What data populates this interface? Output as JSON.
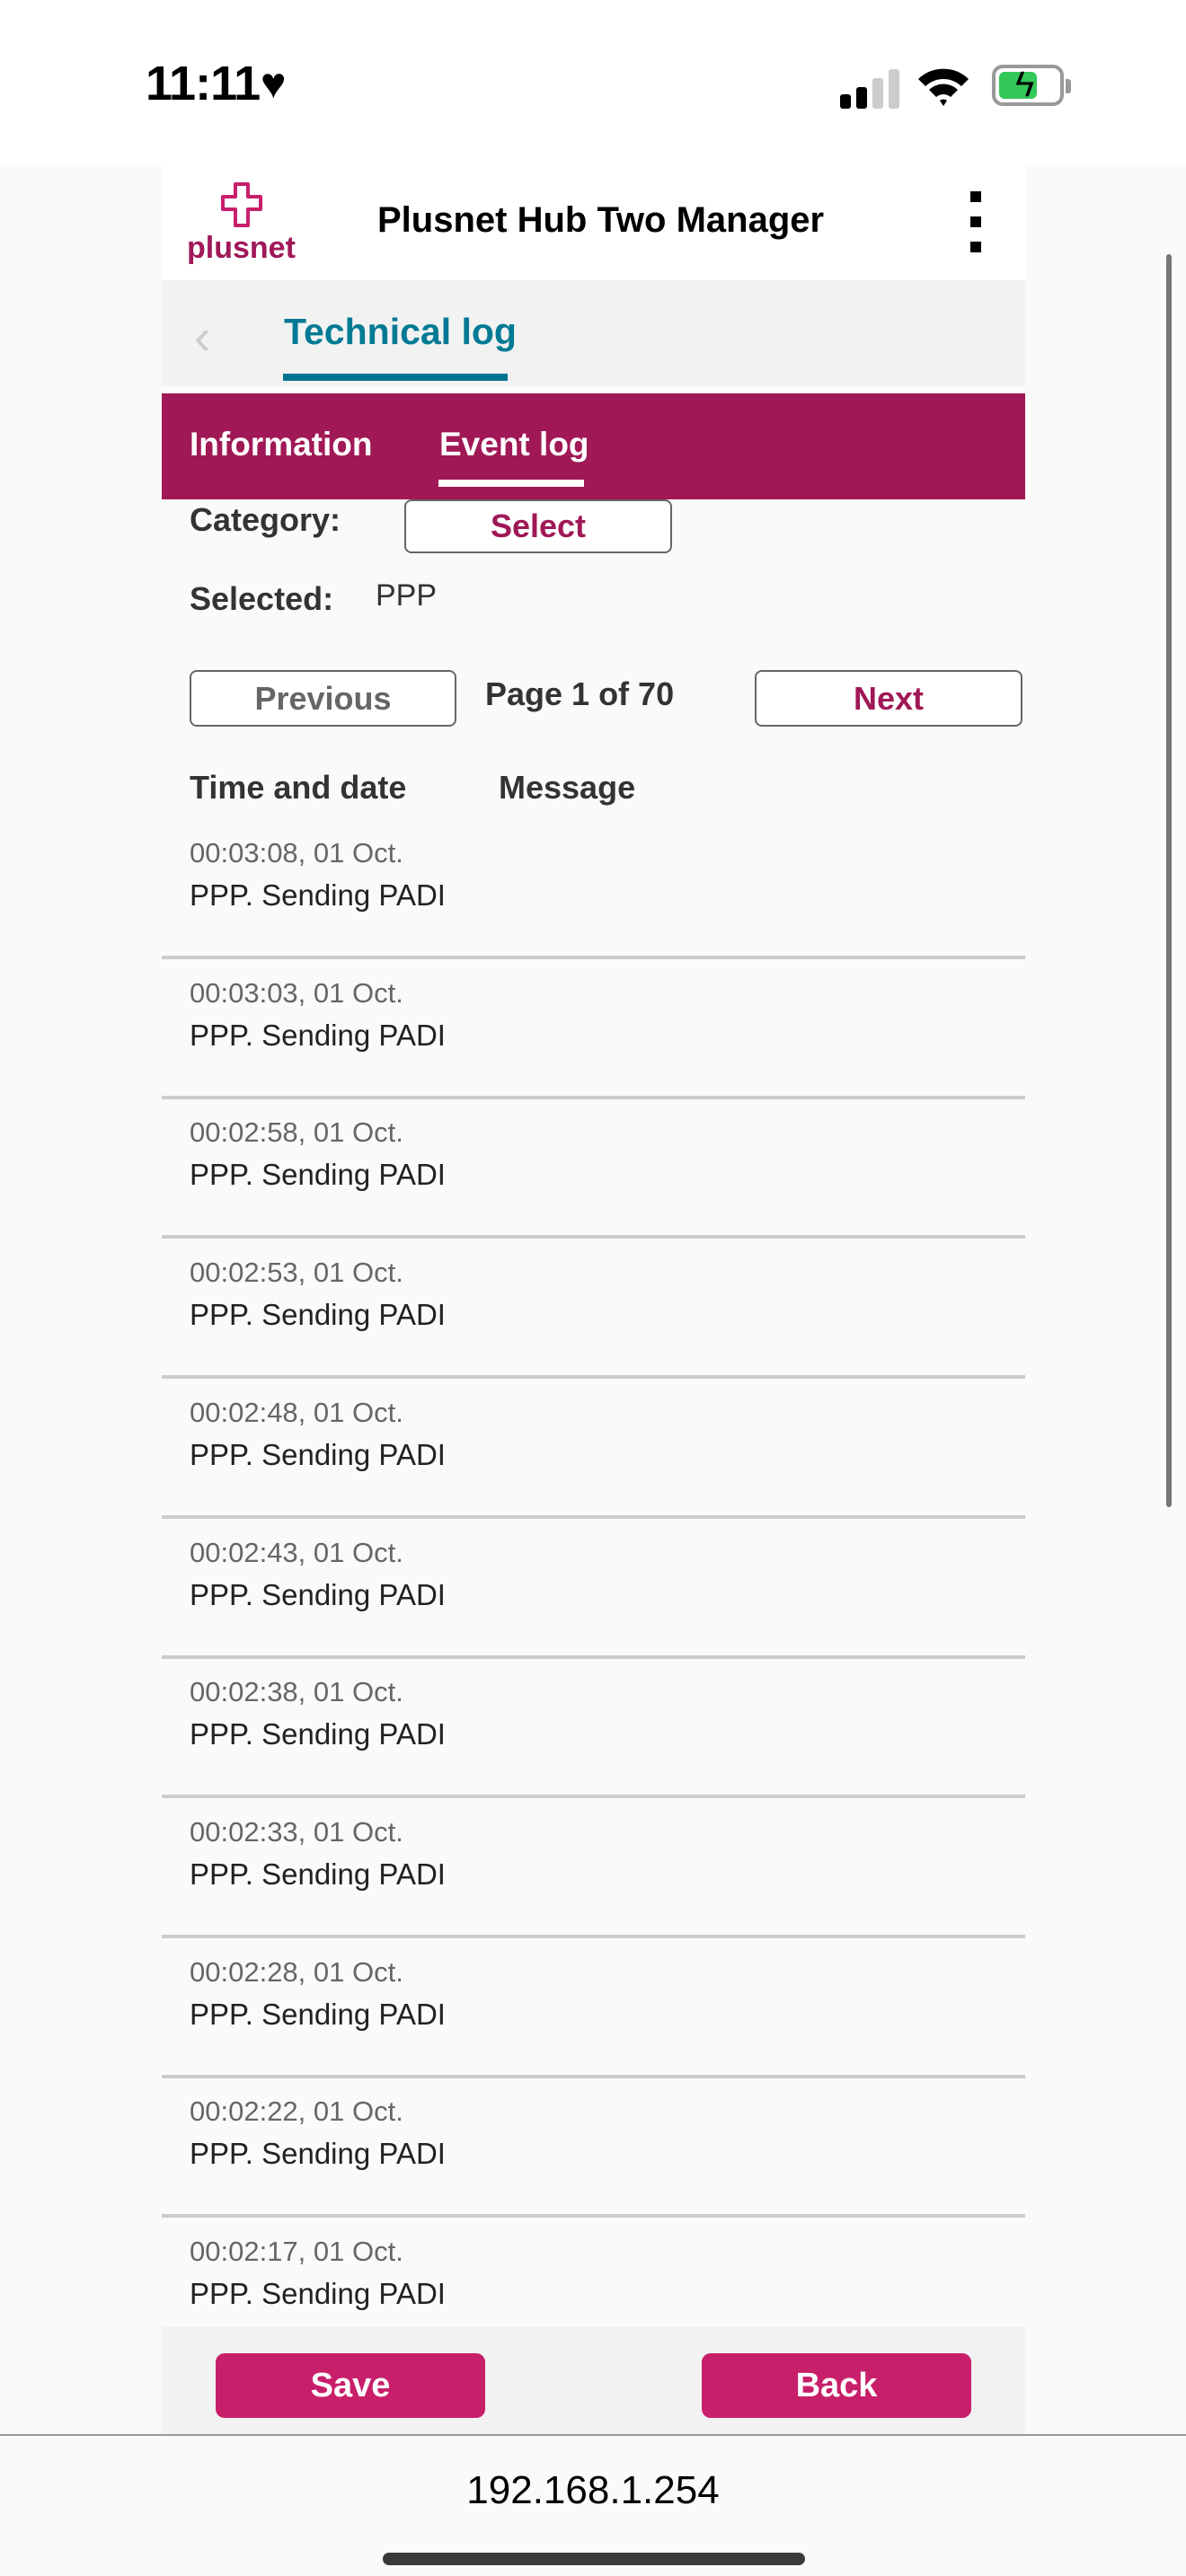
{
  "status_bar": {
    "time": "11:11",
    "heart": "♥",
    "icons": [
      "signal-icon",
      "wifi-icon",
      "battery-charging-icon"
    ]
  },
  "header": {
    "logo_text": "plusnet",
    "title": "Plusnet Hub Two Manager",
    "menu_icon": "kebab-menu-icon"
  },
  "breadcrumb": {
    "back_icon": "chevron-left-icon",
    "label": "Technical log"
  },
  "tabs": [
    {
      "label": "Information",
      "active": false
    },
    {
      "label": "Event log",
      "active": true
    }
  ],
  "filter": {
    "category_label": "Category:",
    "select_label": "Select",
    "selected_label": "Selected:",
    "selected_value": "PPP"
  },
  "pagination": {
    "previous": "Previous",
    "page_text": "Page 1 of 70",
    "next": "Next"
  },
  "table": {
    "headers": [
      "Time and date",
      "Message"
    ],
    "rows": [
      {
        "time": "00:03:08, 01 Oct.",
        "message": "PPP. Sending PADI"
      },
      {
        "time": "00:03:03, 01 Oct.",
        "message": "PPP. Sending PADI"
      },
      {
        "time": "00:02:58, 01 Oct.",
        "message": "PPP. Sending PADI"
      },
      {
        "time": "00:02:53, 01 Oct.",
        "message": "PPP. Sending PADI"
      },
      {
        "time": "00:02:48, 01 Oct.",
        "message": "PPP. Sending PADI"
      },
      {
        "time": "00:02:43, 01 Oct.",
        "message": "PPP. Sending PADI"
      },
      {
        "time": "00:02:38, 01 Oct.",
        "message": "PPP. Sending PADI"
      },
      {
        "time": "00:02:33, 01 Oct.",
        "message": "PPP. Sending PADI"
      },
      {
        "time": "00:02:28, 01 Oct.",
        "message": "PPP. Sending PADI"
      },
      {
        "time": "00:02:22, 01 Oct.",
        "message": "PPP. Sending PADI"
      },
      {
        "time": "00:02:17, 01 Oct.",
        "message": "PPP. Sending PADI"
      }
    ]
  },
  "footer": {
    "save": "Save",
    "back": "Back"
  },
  "browser": {
    "url": "192.168.1.254"
  },
  "colors": {
    "brand": "#a01856",
    "button": "#c81f6b",
    "accent": "#007a94"
  }
}
